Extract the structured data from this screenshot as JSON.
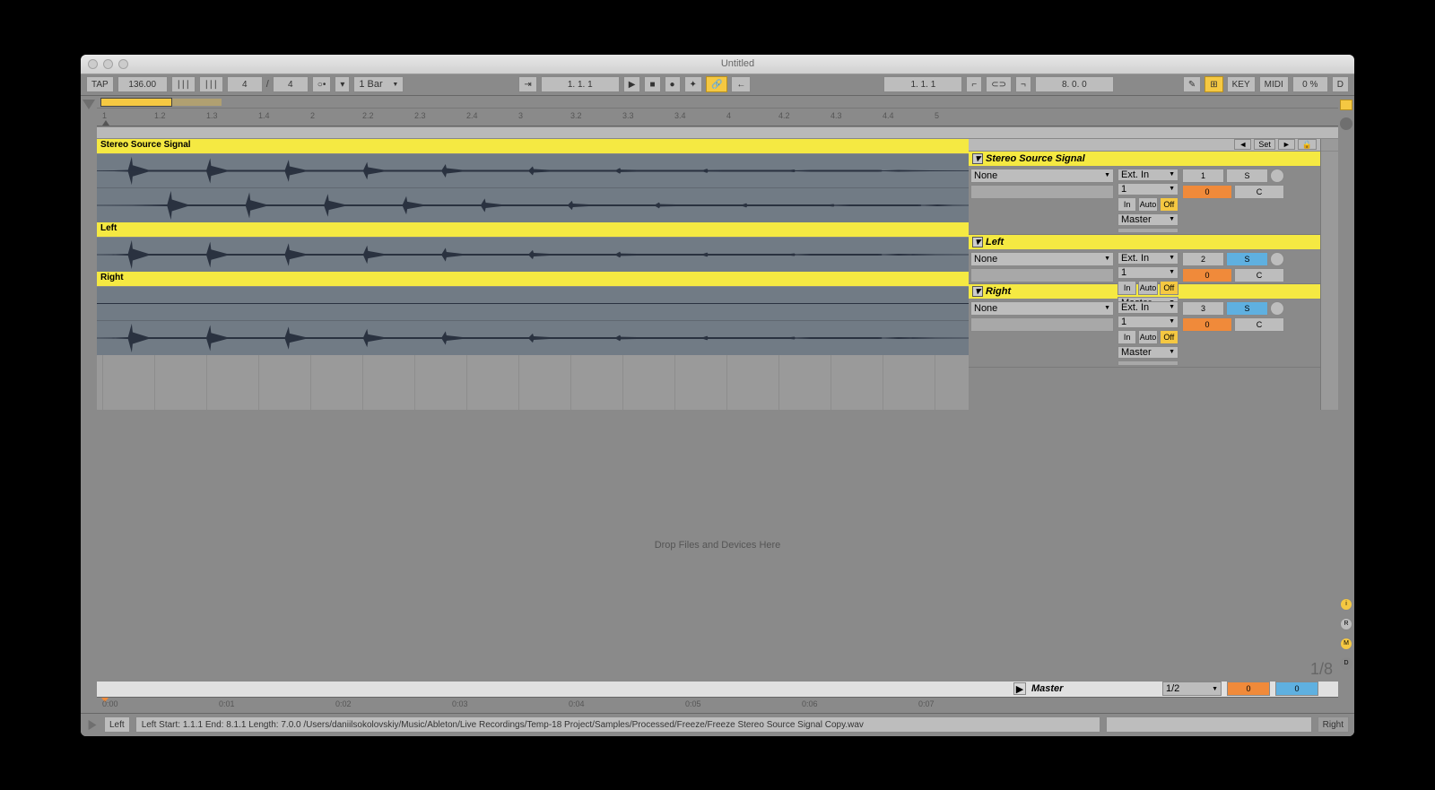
{
  "window": {
    "title": "Untitled"
  },
  "toolbar": {
    "tap": "TAP",
    "tempo": "136.00",
    "sig_num": "4",
    "sig_den": "4",
    "quant": "1 Bar",
    "pos": "1. 1. 1",
    "pos2": "1. 1. 1",
    "loop_len": "8. 0. 0",
    "key": "KEY",
    "midi": "MIDI",
    "cpu": "0 %",
    "d": "D"
  },
  "ruler": [
    "1",
    "1.2",
    "1.3",
    "1.4",
    "2",
    "2.2",
    "2.3",
    "2.4",
    "3",
    "3.2",
    "3.3",
    "3.4",
    "4",
    "4.2",
    "4.3",
    "4.4",
    "5"
  ],
  "time_ruler": [
    "0:00",
    "0:01",
    "0:02",
    "0:03",
    "0:04",
    "0:05",
    "0:06",
    "0:07"
  ],
  "set_label": "Set",
  "tracks": [
    {
      "name": "Stereo Source Signal",
      "lanes": 2,
      "num": "1",
      "solo": false,
      "send": "0",
      "pan": "C",
      "ext": "Ext. In",
      "none": "None",
      "ch": "1",
      "monitor": [
        "In",
        "Auto",
        "Off"
      ],
      "out": "Master"
    },
    {
      "name": "Left",
      "lanes": 1,
      "num": "2",
      "solo": true,
      "send": "0",
      "pan": "C",
      "ext": "Ext. In",
      "none": "None",
      "ch": "1",
      "monitor": [
        "In",
        "Auto",
        "Off"
      ],
      "out": "Master"
    },
    {
      "name": "Right",
      "lanes": 2,
      "num": "3",
      "solo": true,
      "send": "0",
      "pan": "C",
      "ext": "Ext. In",
      "none": "None",
      "ch": "1",
      "monitor": [
        "In",
        "Auto",
        "Off"
      ],
      "out": "Master"
    }
  ],
  "drop_text": "Drop Files and Devices Here",
  "zoom": "1/8",
  "master": {
    "label": "Master",
    "cue": "1/2",
    "a": "0",
    "b": "0"
  },
  "status": {
    "left_btn": "Left",
    "text": "Left  Start: 1.1.1  End: 8.1.1  Length: 7.0.0  /Users/daniilsokolovskiy/Music/Ableton/Live Recordings/Temp-18 Project/Samples/Processed/Freeze/Freeze Stereo Source Signal Copy.wav",
    "right_btn": "Right"
  },
  "colors": {
    "clip_yellow": "#f5e942",
    "accent": "#f5c842",
    "wave": "#2a3240",
    "wave_bg": "#717b85",
    "orange": "#f08a3a",
    "blue": "#5fb0e0"
  },
  "wave_peaks": [
    {
      "x": 0.04,
      "a": 0.95
    },
    {
      "x": 0.13,
      "a": 0.85
    },
    {
      "x": 0.22,
      "a": 0.75
    },
    {
      "x": 0.31,
      "a": 0.6
    },
    {
      "x": 0.4,
      "a": 0.45
    },
    {
      "x": 0.5,
      "a": 0.3
    },
    {
      "x": 0.6,
      "a": 0.2
    },
    {
      "x": 0.7,
      "a": 0.14
    },
    {
      "x": 0.8,
      "a": 0.09
    },
    {
      "x": 0.9,
      "a": 0.05
    }
  ]
}
